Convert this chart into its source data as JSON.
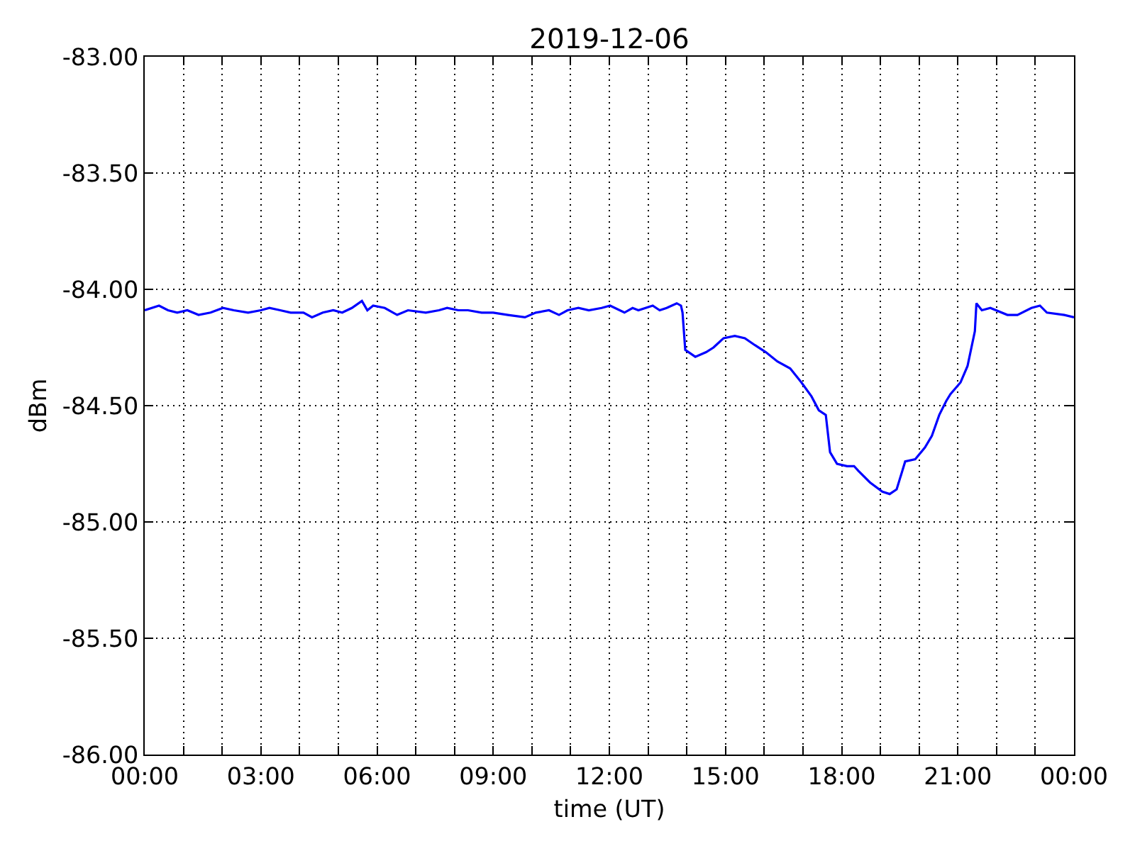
{
  "chart_data": {
    "type": "line",
    "title": "2019-12-06",
    "xlabel": "time (UT)",
    "ylabel": "dBm",
    "x": [
      0,
      0.37,
      0.6,
      0.84,
      1.1,
      1.39,
      1.7,
      2.02,
      2.3,
      2.67,
      3.0,
      3.22,
      3.5,
      3.77,
      4.1,
      4.32,
      4.6,
      4.87,
      5.1,
      5.35,
      5.61,
      5.75,
      5.9,
      6.2,
      6.52,
      6.8,
      7.26,
      7.6,
      7.81,
      8.1,
      8.35,
      8.7,
      9.0,
      9.38,
      9.82,
      10.1,
      10.44,
      10.7,
      10.92,
      11.2,
      11.47,
      11.8,
      12.02,
      12.39,
      12.6,
      12.75,
      13.12,
      13.3,
      13.48,
      13.74,
      13.85,
      13.89,
      13.96,
      14.22,
      14.5,
      14.69,
      14.95,
      15.24,
      15.5,
      15.76,
      16.04,
      16.34,
      16.67,
      16.96,
      17.22,
      17.41,
      17.59,
      17.7,
      17.88,
      18.14,
      18.32,
      18.43,
      18.73,
      19.05,
      19.24,
      19.42,
      19.64,
      19.9,
      20.15,
      20.33,
      20.52,
      20.7,
      20.81,
      21.07,
      21.25,
      21.44,
      21.48,
      21.62,
      21.84,
      22.28,
      22.54,
      22.9,
      23.12,
      23.3,
      23.75,
      24.0
    ],
    "series": [
      {
        "color": "#0000ff",
        "values": [
          -84.09,
          -84.07,
          -84.09,
          -84.1,
          -84.09,
          -84.11,
          -84.1,
          -84.08,
          -84.09,
          -84.1,
          -84.09,
          -84.08,
          -84.09,
          -84.1,
          -84.1,
          -84.12,
          -84.1,
          -84.09,
          -84.1,
          -84.08,
          -84.05,
          -84.09,
          -84.07,
          -84.08,
          -84.11,
          -84.09,
          -84.1,
          -84.09,
          -84.08,
          -84.09,
          -84.09,
          -84.1,
          -84.1,
          -84.11,
          -84.12,
          -84.1,
          -84.09,
          -84.11,
          -84.09,
          -84.08,
          -84.09,
          -84.08,
          -84.07,
          -84.1,
          -84.08,
          -84.09,
          -84.07,
          -84.09,
          -84.08,
          -84.06,
          -84.07,
          -84.1,
          -84.26,
          -84.29,
          -84.27,
          -84.25,
          -84.21,
          -84.2,
          -84.21,
          -84.24,
          -84.27,
          -84.31,
          -84.34,
          -84.4,
          -84.46,
          -84.52,
          -84.54,
          -84.7,
          -84.75,
          -84.76,
          -84.76,
          -84.78,
          -84.83,
          -84.87,
          -84.88,
          -84.86,
          -84.74,
          -84.73,
          -84.68,
          -84.63,
          -84.54,
          -84.48,
          -84.45,
          -84.4,
          -84.33,
          -84.18,
          -84.06,
          -84.09,
          -84.08,
          -84.11,
          -84.11,
          -84.08,
          -84.07,
          -84.1,
          -84.11,
          -84.12
        ]
      }
    ],
    "xlim": [
      0,
      24
    ],
    "xticks": [
      {
        "value": 0,
        "label": "00:00"
      },
      {
        "value": 1,
        "label": null
      },
      {
        "value": 2,
        "label": null
      },
      {
        "value": 3,
        "label": "03:00"
      },
      {
        "value": 4,
        "label": null
      },
      {
        "value": 5,
        "label": null
      },
      {
        "value": 6,
        "label": "06:00"
      },
      {
        "value": 7,
        "label": null
      },
      {
        "value": 8,
        "label": null
      },
      {
        "value": 9,
        "label": "09:00"
      },
      {
        "value": 10,
        "label": null
      },
      {
        "value": 11,
        "label": null
      },
      {
        "value": 12,
        "label": "12:00"
      },
      {
        "value": 13,
        "label": null
      },
      {
        "value": 14,
        "label": null
      },
      {
        "value": 15,
        "label": "15:00"
      },
      {
        "value": 16,
        "label": null
      },
      {
        "value": 17,
        "label": null
      },
      {
        "value": 18,
        "label": "18:00"
      },
      {
        "value": 19,
        "label": null
      },
      {
        "value": 20,
        "label": null
      },
      {
        "value": 21,
        "label": "21:00"
      },
      {
        "value": 22,
        "label": null
      },
      {
        "value": 23,
        "label": null
      },
      {
        "value": 24,
        "label": "00:00"
      }
    ],
    "ylim": [
      -86,
      -83
    ],
    "yticks": [
      {
        "value": -86,
        "label": "-86.00"
      },
      {
        "value": -85.5,
        "label": "-85.50"
      },
      {
        "value": -85,
        "label": "-85.00"
      },
      {
        "value": -84.5,
        "label": "-84.50"
      },
      {
        "value": -84,
        "label": "-84.00"
      },
      {
        "value": -83.5,
        "label": "-83.50"
      },
      {
        "value": -83,
        "label": "-83.00"
      }
    ],
    "grid": true,
    "line_style": "solid"
  }
}
